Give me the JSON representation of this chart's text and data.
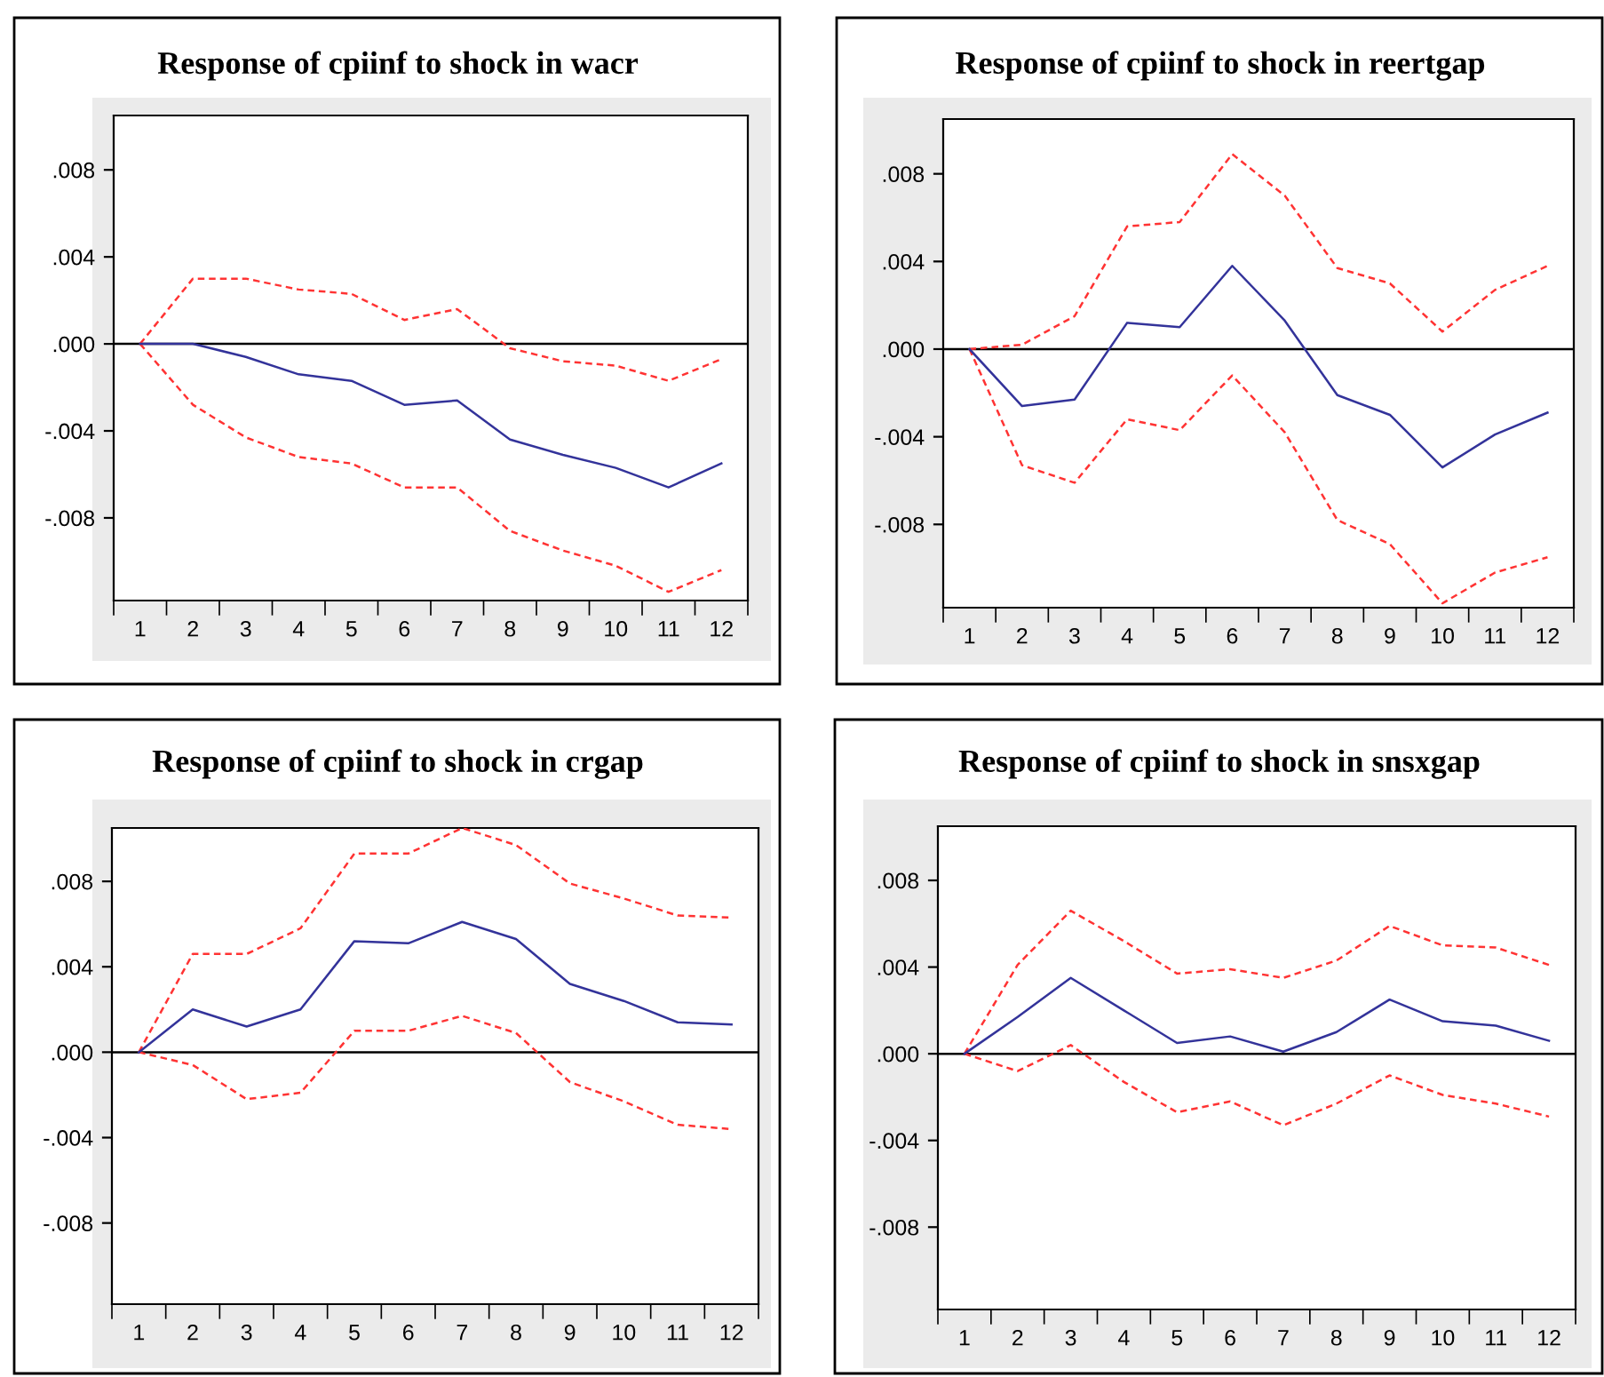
{
  "chart_data": [
    {
      "type": "line",
      "title": "Response of cpiinf to shock in wacr",
      "categories": [
        "1",
        "2",
        "3",
        "4",
        "5",
        "6",
        "7",
        "8",
        "9",
        "10",
        "11",
        "12"
      ],
      "ylim": [
        -0.0118,
        0.0105
      ],
      "yticks": [
        {
          "value": 0.008,
          "label": ".008"
        },
        {
          "value": 0.004,
          "label": ".004"
        },
        {
          "value": 0,
          "label": ".000"
        },
        {
          "value": -0.004,
          "label": "-.004"
        },
        {
          "value": -0.008,
          "label": "-.008"
        }
      ],
      "grid": false,
      "legend": false,
      "ref_lines": [
        {
          "axis": "y",
          "value": 0,
          "color": "#000000",
          "line_style": "solid"
        }
      ],
      "series": [
        {
          "color": "#ff3333",
          "line_style": "dashed",
          "values": [
            0,
            0.003,
            0.003,
            0.0025,
            0.0023,
            0.0011,
            0.0016,
            -0.0002,
            -0.0008,
            -0.001,
            -0.0017,
            -0.0007
          ]
        },
        {
          "color": "#ff3333",
          "line_style": "dashed",
          "values": [
            0,
            -0.0028,
            -0.0043,
            -0.0052,
            -0.0055,
            -0.0066,
            -0.0066,
            -0.0086,
            -0.0095,
            -0.0102,
            -0.0114,
            -0.0104
          ]
        },
        {
          "color": "#33339a",
          "line_style": "solid",
          "values": [
            0,
            0,
            -0.0006,
            -0.0014,
            -0.0017,
            -0.0028,
            -0.0026,
            -0.0044,
            -0.0051,
            -0.0057,
            -0.0066,
            -0.0055
          ]
        }
      ]
    },
    {
      "type": "line",
      "title": "Response of cpiinf to shock in reertgap",
      "categories": [
        "1",
        "2",
        "3",
        "4",
        "5",
        "6",
        "7",
        "8",
        "9",
        "10",
        "11",
        "12"
      ],
      "ylim": [
        -0.0118,
        0.0105
      ],
      "yticks": [
        {
          "value": 0.008,
          "label": ".008"
        },
        {
          "value": 0.004,
          "label": ".004"
        },
        {
          "value": 0,
          "label": ".000"
        },
        {
          "value": -0.004,
          "label": "-.004"
        },
        {
          "value": -0.008,
          "label": "-.008"
        }
      ],
      "grid": false,
      "legend": false,
      "ref_lines": [
        {
          "axis": "y",
          "value": 0,
          "color": "#000000",
          "line_style": "solid"
        }
      ],
      "series": [
        {
          "color": "#ff3333",
          "line_style": "dashed",
          "values": [
            0,
            0.0002,
            0.0015,
            0.0056,
            0.0058,
            0.0089,
            0.007,
            0.0037,
            0.003,
            0.0008,
            0.0027,
            0.0038
          ]
        },
        {
          "color": "#ff3333",
          "line_style": "dashed",
          "values": [
            0,
            -0.0053,
            -0.0061,
            -0.0032,
            -0.0037,
            -0.0012,
            -0.0038,
            -0.0078,
            -0.0089,
            -0.0116,
            -0.0102,
            -0.0095
          ]
        },
        {
          "color": "#33339a",
          "line_style": "solid",
          "values": [
            0,
            -0.0026,
            -0.0023,
            0.0012,
            0.001,
            0.0038,
            0.0013,
            -0.0021,
            -0.003,
            -0.0054,
            -0.0039,
            -0.0029
          ]
        }
      ]
    },
    {
      "type": "line",
      "title": "Response of cpiinf to shock in crgap",
      "categories": [
        "1",
        "2",
        "3",
        "4",
        "5",
        "6",
        "7",
        "8",
        "9",
        "10",
        "11",
        "12"
      ],
      "ylim": [
        -0.0118,
        0.0105
      ],
      "yticks": [
        {
          "value": 0.008,
          "label": ".008"
        },
        {
          "value": 0.004,
          "label": ".004"
        },
        {
          "value": 0,
          "label": ".000"
        },
        {
          "value": -0.004,
          "label": "-.004"
        },
        {
          "value": -0.008,
          "label": "-.008"
        }
      ],
      "grid": false,
      "legend": false,
      "ref_lines": [
        {
          "axis": "y",
          "value": 0,
          "color": "#000000",
          "line_style": "solid"
        }
      ],
      "series": [
        {
          "color": "#ff3333",
          "line_style": "dashed",
          "values": [
            0,
            0.0046,
            0.0046,
            0.0058,
            0.0093,
            0.0093,
            0.0105,
            0.0097,
            0.0079,
            0.0072,
            0.0064,
            0.0063
          ]
        },
        {
          "color": "#ff3333",
          "line_style": "dashed",
          "values": [
            0,
            -0.0006,
            -0.0022,
            -0.0019,
            0.001,
            0.001,
            0.0017,
            0.0009,
            -0.0014,
            -0.0023,
            -0.0034,
            -0.0036
          ]
        },
        {
          "color": "#33339a",
          "line_style": "solid",
          "values": [
            0,
            0.002,
            0.0012,
            0.002,
            0.0052,
            0.0051,
            0.0061,
            0.0053,
            0.0032,
            0.0024,
            0.0014,
            0.0013
          ]
        }
      ]
    },
    {
      "type": "line",
      "title": "Response of cpiinf to shock in snsxgap",
      "categories": [
        "1",
        "2",
        "3",
        "4",
        "5",
        "6",
        "7",
        "8",
        "9",
        "10",
        "11",
        "12"
      ],
      "ylim": [
        -0.0118,
        0.0105
      ],
      "yticks": [
        {
          "value": 0.008,
          "label": ".008"
        },
        {
          "value": 0.004,
          "label": ".004"
        },
        {
          "value": 0,
          "label": ".000"
        },
        {
          "value": -0.004,
          "label": "-.004"
        },
        {
          "value": -0.008,
          "label": "-.008"
        }
      ],
      "grid": false,
      "legend": false,
      "ref_lines": [
        {
          "axis": "y",
          "value": 0,
          "color": "#000000",
          "line_style": "solid"
        }
      ],
      "series": [
        {
          "color": "#ff3333",
          "line_style": "dashed",
          "values": [
            0,
            0.0041,
            0.0066,
            0.0052,
            0.0037,
            0.0039,
            0.0035,
            0.0043,
            0.0059,
            0.005,
            0.0049,
            0.0041
          ]
        },
        {
          "color": "#ff3333",
          "line_style": "dashed",
          "values": [
            0,
            -0.0008,
            0.0004,
            -0.0013,
            -0.0027,
            -0.0022,
            -0.0033,
            -0.0023,
            -0.001,
            -0.0019,
            -0.0023,
            -0.0029
          ]
        },
        {
          "color": "#33339a",
          "line_style": "solid",
          "values": [
            0,
            0.0017,
            0.0035,
            0.002,
            0.0005,
            0.0008,
            0.0001,
            0.001,
            0.0025,
            0.0015,
            0.0013,
            0.0006
          ]
        }
      ]
    }
  ]
}
